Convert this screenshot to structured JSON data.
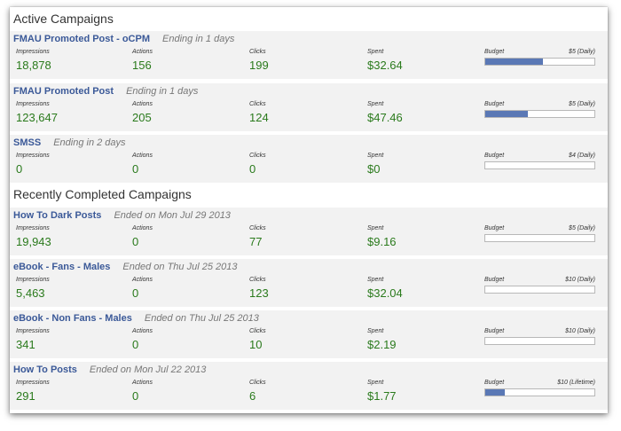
{
  "active": {
    "title": "Active Campaigns",
    "campaigns": [
      {
        "name": "FMAU Promoted Post - oCPM",
        "status": "Ending in 1 days",
        "impressions": "18,878",
        "actions": "156",
        "clicks": "199",
        "spent": "$32.64",
        "budget": "$5 (Daily)",
        "budget_used": 0.53
      },
      {
        "name": "FMAU Promoted Post",
        "status": "Ending in 1 days",
        "impressions": "123,647",
        "actions": "205",
        "clicks": "124",
        "spent": "$47.46",
        "budget": "$5 (Daily)",
        "budget_used": 0.39
      },
      {
        "name": "SMSS",
        "status": "Ending in 2 days",
        "impressions": "0",
        "actions": "0",
        "clicks": "0",
        "spent": "$0",
        "budget": "$4 (Daily)",
        "budget_used": 0
      }
    ]
  },
  "completed": {
    "title": "Recently Completed Campaigns",
    "campaigns": [
      {
        "name": "How To Dark Posts",
        "status": "Ended on Mon Jul 29 2013",
        "impressions": "19,943",
        "actions": "0",
        "clicks": "77",
        "spent": "$9.16",
        "budget": "$5 (Daily)",
        "budget_used": 0
      },
      {
        "name": "eBook - Fans - Males",
        "status": "Ended on Thu Jul 25 2013",
        "impressions": "5,463",
        "actions": "0",
        "clicks": "123",
        "spent": "$32.04",
        "budget": "$10 (Daily)",
        "budget_used": 0
      },
      {
        "name": "eBook - Non Fans - Males",
        "status": "Ended on Thu Jul 25 2013",
        "impressions": "341",
        "actions": "0",
        "clicks": "10",
        "spent": "$2.19",
        "budget": "$10 (Daily)",
        "budget_used": 0
      },
      {
        "name": "How To Posts",
        "status": "Ended on Mon Jul 22 2013",
        "impressions": "291",
        "actions": "0",
        "clicks": "6",
        "spent": "$1.77",
        "budget": "$10 (Lifetime)",
        "budget_used": 0.18
      }
    ]
  },
  "labels": {
    "impressions": "Impressions",
    "actions": "Actions",
    "clicks": "Clicks",
    "spent": "Spent",
    "budget": "Budget"
  }
}
